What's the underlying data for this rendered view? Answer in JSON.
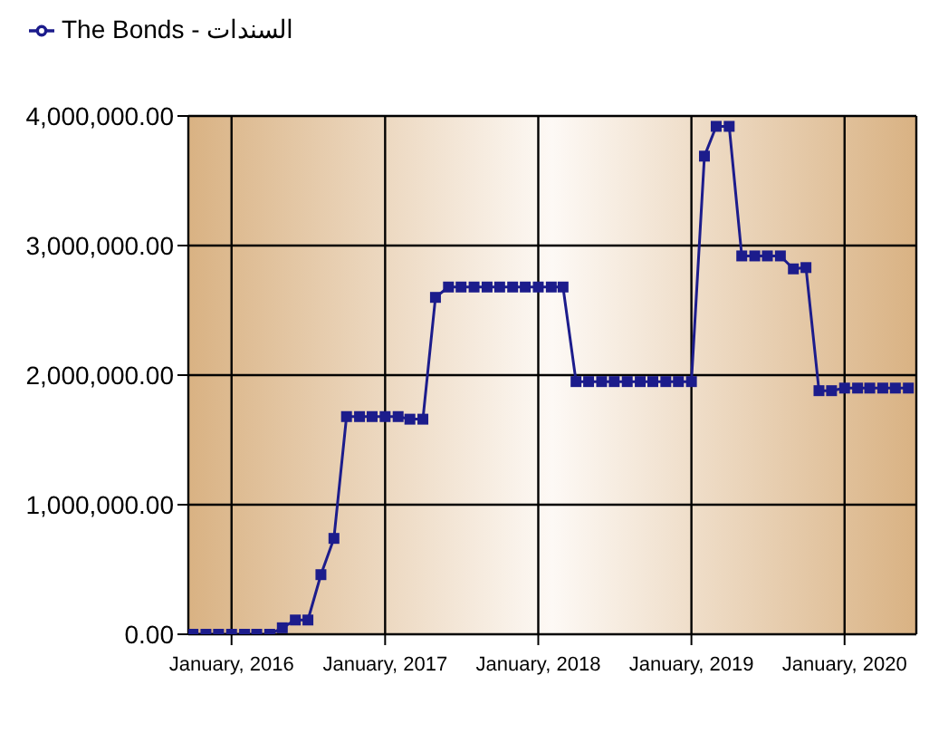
{
  "chart_data": {
    "type": "line",
    "legend": "top left",
    "grid": true,
    "marker": "square",
    "line_style": "solid",
    "x": [
      "2015-10",
      "2015-11",
      "2015-12",
      "2016-01",
      "2016-02",
      "2016-03",
      "2016-04",
      "2016-05",
      "2016-06",
      "2016-07",
      "2016-08",
      "2016-09",
      "2016-10",
      "2016-11",
      "2016-12",
      "2017-01",
      "2017-02",
      "2017-03",
      "2017-04",
      "2017-05",
      "2017-06",
      "2017-07",
      "2017-08",
      "2017-09",
      "2017-10",
      "2017-11",
      "2017-12",
      "2018-01",
      "2018-02",
      "2018-03",
      "2018-04",
      "2018-05",
      "2018-06",
      "2018-07",
      "2018-08",
      "2018-09",
      "2018-10",
      "2018-11",
      "2018-12",
      "2019-01",
      "2019-02",
      "2019-03",
      "2019-04",
      "2019-05",
      "2019-06",
      "2019-07",
      "2019-08",
      "2019-09",
      "2019-10",
      "2019-11",
      "2019-12",
      "2020-01",
      "2020-02",
      "2020-03",
      "2020-04",
      "2020-05",
      "2020-06"
    ],
    "series": [
      {
        "name": "The Bonds - السندات",
        "color": "#1c1c8c",
        "values": [
          0,
          0,
          0,
          0,
          0,
          0,
          0,
          50000,
          110000,
          110000,
          460000,
          740000,
          1680000,
          1680000,
          1680000,
          1680000,
          1680000,
          1660000,
          1660000,
          2600000,
          2680000,
          2680000,
          2680000,
          2680000,
          2680000,
          2680000,
          2680000,
          2680000,
          2680000,
          2680000,
          1950000,
          1950000,
          1950000,
          1950000,
          1950000,
          1950000,
          1950000,
          1950000,
          1950000,
          1950000,
          3690000,
          3920000,
          3920000,
          2920000,
          2920000,
          2920000,
          2920000,
          2820000,
          2830000,
          1880000,
          1880000,
          1900000,
          1900000,
          1900000,
          1900000,
          1900000,
          1900000
        ]
      }
    ],
    "xlim": [
      "2015-09-20",
      "2020-06-20"
    ],
    "xticks": [
      {
        "value": "2016-01",
        "label": "January, 2016"
      },
      {
        "value": "2017-01",
        "label": "January, 2017"
      },
      {
        "value": "2018-01",
        "label": "January, 2018"
      },
      {
        "value": "2019-01",
        "label": "January, 2019"
      },
      {
        "value": "2020-01",
        "label": "January, 2020"
      }
    ],
    "ylim": [
      0,
      4000000
    ],
    "yticks": [
      {
        "value": 0,
        "label": "0.00"
      },
      {
        "value": 1000000,
        "label": "1,000,000.00"
      },
      {
        "value": 2000000,
        "label": "2,000,000.00"
      },
      {
        "value": 3000000,
        "label": "3,000,000.00"
      },
      {
        "value": 4000000,
        "label": "4,000,000.00"
      }
    ]
  }
}
